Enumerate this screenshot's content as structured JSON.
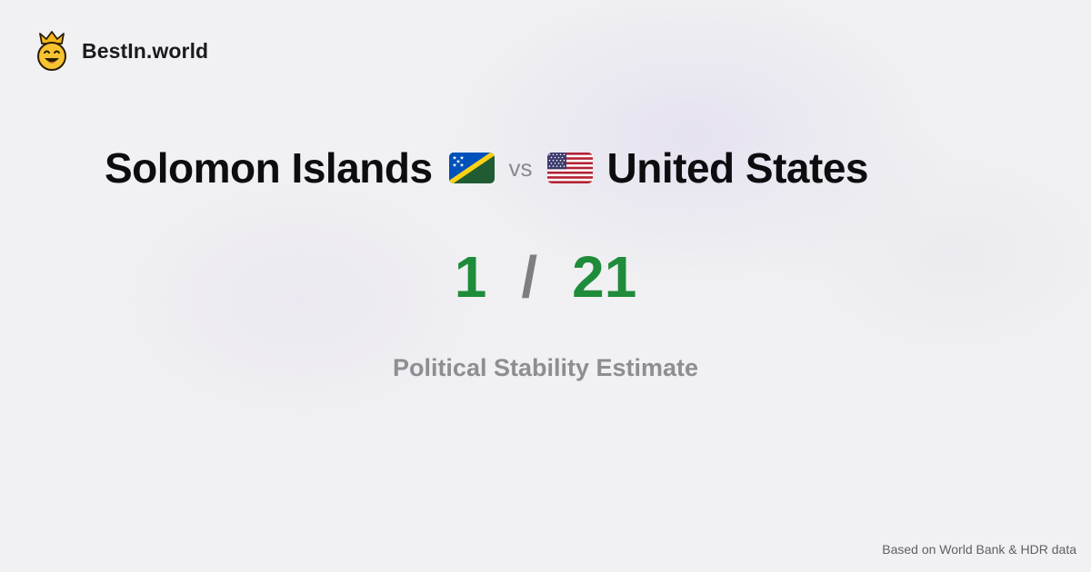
{
  "brand": {
    "name": "BestIn.world",
    "logo_icon": "crowned-smiley-icon"
  },
  "comparison": {
    "left_country": "Solomon Islands",
    "left_flag_icon": "solomon-islands-flag-icon",
    "vs_label": "vs",
    "right_country": "United States",
    "right_flag_icon": "united-states-flag-icon"
  },
  "scores": {
    "left": "1",
    "separator": "/",
    "right": "21"
  },
  "metric": "Political Stability Estimate",
  "footer": "Based on World Bank & HDR data",
  "colors": {
    "score_green": "#1e8c3a",
    "text_dark": "#0d0d0f",
    "muted_gray": "#8d8d92"
  }
}
